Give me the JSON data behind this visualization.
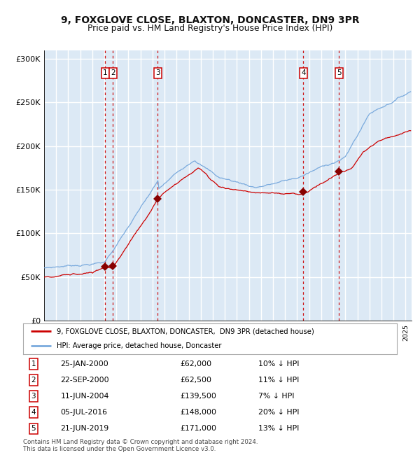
{
  "title": "9, FOXGLOVE CLOSE, BLAXTON, DONCASTER, DN9 3PR",
  "subtitle": "Price paid vs. HM Land Registry's House Price Index (HPI)",
  "ylim": [
    0,
    310000
  ],
  "xlim_start": 1995.0,
  "xlim_end": 2025.5,
  "yticks": [
    0,
    50000,
    100000,
    150000,
    200000,
    250000,
    300000
  ],
  "ytick_labels": [
    "£0",
    "£50K",
    "£100K",
    "£150K",
    "£200K",
    "£250K",
    "£300K"
  ],
  "background_color": "#dce9f5",
  "grid_color": "#ffffff",
  "sale_color": "#cc0000",
  "hpi_color": "#7aaadd",
  "vline_color": "#cc0000",
  "sale_marker_color": "#880000",
  "transactions": [
    {
      "id": 1,
      "date": 2000.07,
      "price": 62000,
      "label": "25-JAN-2000",
      "price_str": "£62,000",
      "hpi_str": "10% ↓ HPI"
    },
    {
      "id": 2,
      "date": 2000.72,
      "price": 62500,
      "label": "22-SEP-2000",
      "price_str": "£62,500",
      "hpi_str": "11% ↓ HPI"
    },
    {
      "id": 3,
      "date": 2004.44,
      "price": 139500,
      "label": "11-JUN-2004",
      "price_str": "£139,500",
      "hpi_str": "7% ↓ HPI"
    },
    {
      "id": 4,
      "date": 2016.51,
      "price": 148000,
      "label": "05-JUL-2016",
      "price_str": "£148,000",
      "hpi_str": "20% ↓ HPI"
    },
    {
      "id": 5,
      "date": 2019.47,
      "price": 171000,
      "label": "21-JUN-2019",
      "price_str": "£171,000",
      "hpi_str": "13% ↓ HPI"
    }
  ],
  "legend_sale": "9, FOXGLOVE CLOSE, BLAXTON, DONCASTER,  DN9 3PR (detached house)",
  "legend_hpi": "HPI: Average price, detached house, Doncaster",
  "footnote": "Contains HM Land Registry data © Crown copyright and database right 2024.\nThis data is licensed under the Open Government Licence v3.0."
}
